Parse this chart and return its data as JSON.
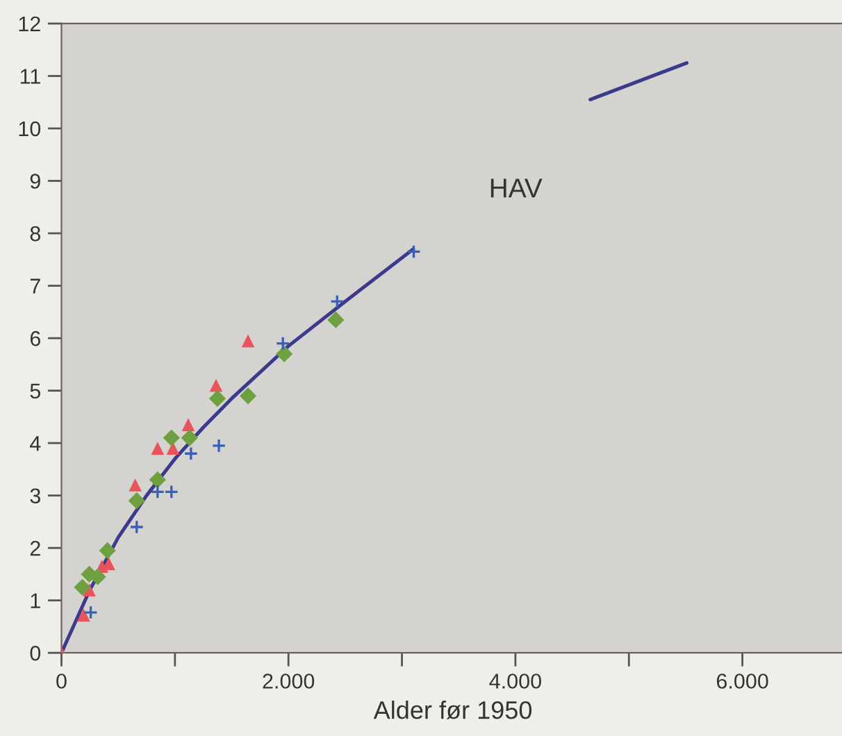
{
  "chart_data": {
    "type": "scatter",
    "xlabel": "Alder før 1950",
    "annotations": [
      "HAV"
    ],
    "xlim": [
      0,
      6900
    ],
    "ylim": [
      0,
      12
    ],
    "xticks": [
      0,
      {
        "value": 1000,
        "label": null
      },
      {
        "value": 2000,
        "label": "2.000"
      },
      {
        "value": 3000,
        "label": null
      },
      {
        "value": 4000,
        "label": "4.000"
      },
      {
        "value": 5000,
        "label": null
      },
      {
        "value": 6000,
        "label": "6.000"
      }
    ],
    "yticks": [
      0,
      1,
      2,
      3,
      4,
      5,
      6,
      7,
      8,
      9,
      10,
      11,
      12
    ],
    "grid": false,
    "legend": false,
    "series": [
      {
        "type": "line",
        "color": "#3b3a8c",
        "marker": "none",
        "line_style": "solid",
        "x": [
          0,
          250,
          500,
          750,
          1000,
          1250,
          1500,
          2000,
          2500,
          3100
        ],
        "values": [
          0,
          1.2,
          2.2,
          3.0,
          3.7,
          4.3,
          4.85,
          5.85,
          6.7,
          7.7
        ]
      },
      {
        "type": "line",
        "color": "#3b3a8c",
        "marker": "none",
        "line_style": "solid",
        "x": [
          4660,
          5510
        ],
        "values": [
          10.55,
          11.25
        ]
      },
      {
        "color": "#e8545a",
        "marker": "triangle",
        "x": [
          0,
          196,
          245,
          356,
          417,
          650,
          847,
          982,
          1117,
          1362,
          1644
        ],
        "values": [
          0,
          0.72,
          1.2,
          1.65,
          1.7,
          3.2,
          3.9,
          3.9,
          4.35,
          5.1,
          5.95
        ]
      },
      {
        "color": "#6ea040",
        "marker": "diamond",
        "x": [
          184,
          245,
          319,
          405,
          663,
          847,
          969,
          1129,
          1374,
          1644,
          1963,
          2417
        ],
        "values": [
          1.25,
          1.5,
          1.45,
          1.95,
          2.9,
          3.3,
          4.1,
          4.1,
          4.85,
          4.9,
          5.7,
          6.35
        ]
      },
      {
        "color": "#3a5fb8",
        "marker": "cross",
        "x": [
          258,
          663,
          847,
          969,
          1141,
          1387,
          1951,
          2429,
          3104
        ],
        "values": [
          0.77,
          2.4,
          3.07,
          3.07,
          3.8,
          3.95,
          5.9,
          6.7,
          7.65
        ]
      }
    ]
  }
}
